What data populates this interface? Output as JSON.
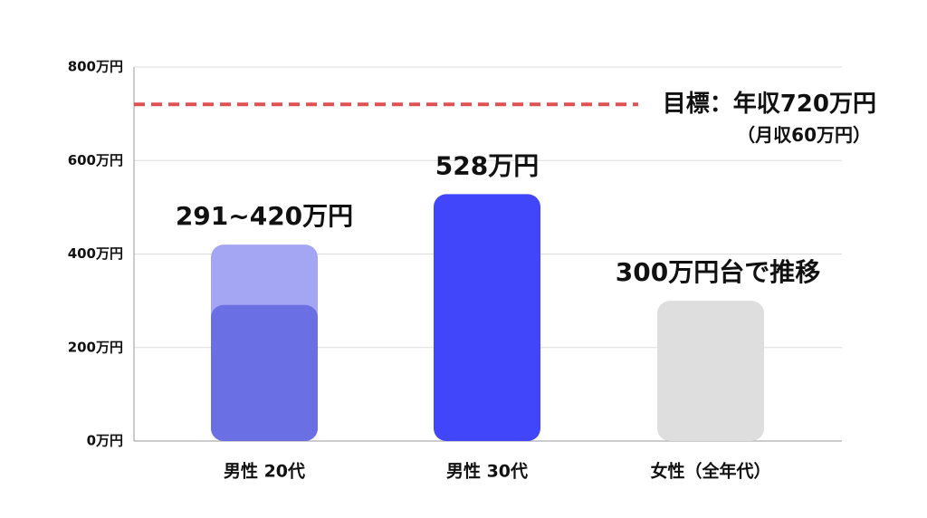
{
  "chart_data": {
    "type": "bar",
    "categories": [
      "男性 20代",
      "男性 30代",
      "女性（全年代）"
    ],
    "values": [
      291,
      528,
      300
    ],
    "value_labels": [
      "291~420万円",
      "528万円",
      "300万円台で推移"
    ],
    "range_upper": [
      420,
      null,
      null
    ],
    "colors": [
      "#6a6fe4",
      "#4246fb",
      "#dedede"
    ],
    "range_color": "#a4a6f4",
    "ylim": [
      0,
      800
    ],
    "yticks": [
      {
        "value": 0,
        "label": "0万円"
      },
      {
        "value": 200,
        "label": "200万円"
      },
      {
        "value": 400,
        "label": "400万円"
      },
      {
        "value": 600,
        "label": "600万円"
      },
      {
        "value": 800,
        "label": "800万円"
      }
    ],
    "grid": true,
    "reference_line": {
      "value": 720,
      "color": "#e05252",
      "label": "目標：年収720万円",
      "sublabel": "（月収60万円）"
    }
  }
}
